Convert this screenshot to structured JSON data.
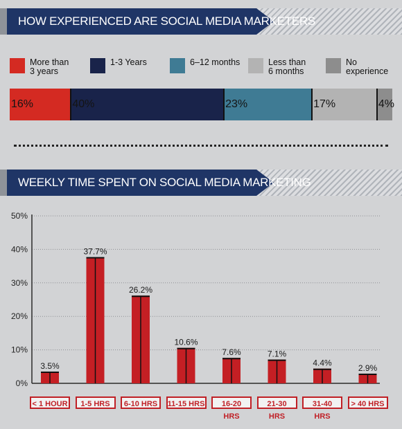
{
  "section1": {
    "title": "HOW EXPERIENCED ARE SOCIAL MEDIA MARKETERS"
  },
  "section2": {
    "title": "WEEKLY TIME SPENT ON SOCIAL MEDIA MARKETING"
  },
  "chart_data": [
    {
      "type": "bar",
      "stacked": true,
      "orientation": "horizontal",
      "categories": [
        "More than\n3 years",
        "1-3 Years",
        "6–12 months",
        "Less than\n6 months",
        "No\nexperience"
      ],
      "values": [
        16,
        40,
        23,
        17,
        4
      ],
      "value_labels": [
        "16%",
        "40%",
        "23%",
        "17%",
        "4%"
      ],
      "colors": [
        "#d42a22",
        "#19234a",
        "#3f7b94",
        "#b3b3b3",
        "#8d8d8d"
      ],
      "legend_position": "top"
    },
    {
      "type": "bar",
      "categories": [
        "< 1 HOUR",
        "1-5 HRS",
        "6-10 HRS",
        "11-15 HRS",
        "16-20 HRS",
        "21-30 HRS",
        "31-40 HRS",
        "> 40 HRS"
      ],
      "values": [
        3.5,
        37.7,
        26.2,
        10.6,
        7.6,
        7.1,
        4.4,
        2.9
      ],
      "value_labels": [
        "3.5%",
        "37.7%",
        "26.2%",
        "10.6%",
        "7.6%",
        "7.1%",
        "4.4%",
        "2.9%"
      ],
      "yticks": [
        "0%",
        "10%",
        "20%",
        "30%",
        "40%",
        "50%"
      ],
      "ylim": [
        0,
        50
      ],
      "grid": true,
      "bar_color": "#c41f24"
    }
  ]
}
